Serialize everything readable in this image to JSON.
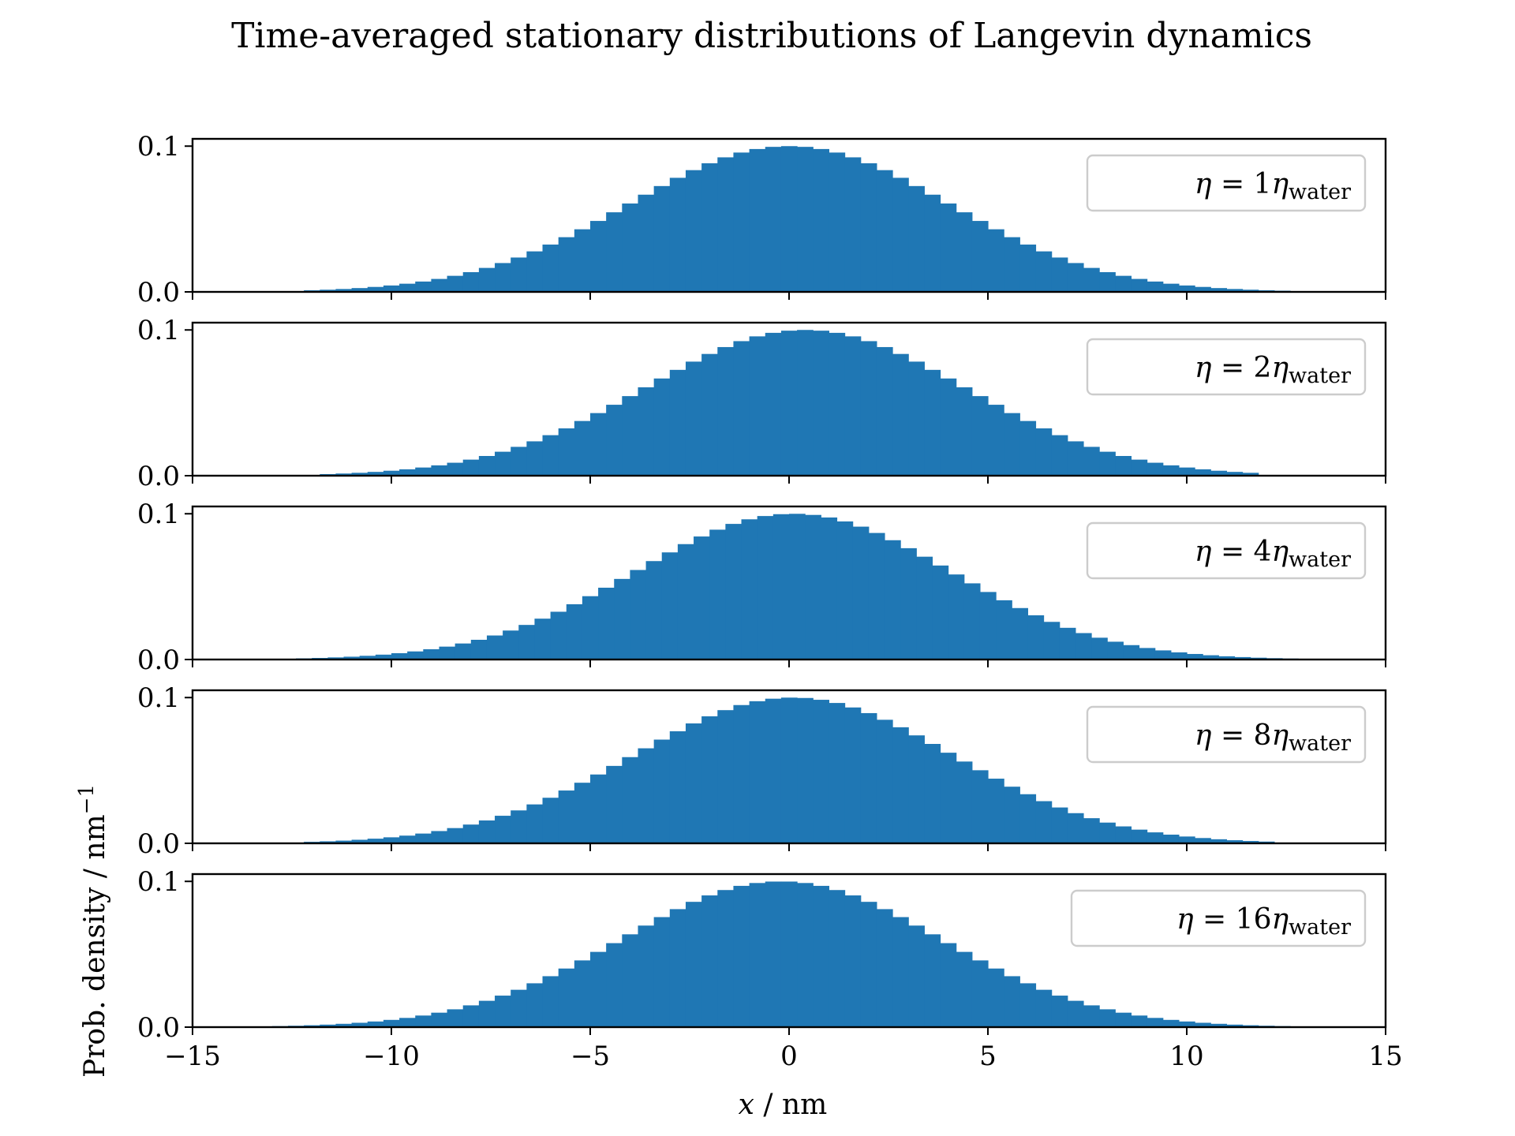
{
  "figure": {
    "title": "Time-averaged stationary distributions of Langevin dynamics",
    "xlabel": "x / nm",
    "ylabel": "Prob. density / nm⁻¹"
  },
  "colors": {
    "bar": "#1f77b4",
    "axis": "#000000",
    "legend_border": "#cccccc"
  },
  "chart_data": [
    {
      "type": "bar",
      "legend": "η = 1ηwater",
      "eta_multiplier": "1",
      "xlim": [
        -15,
        15
      ],
      "ylim": [
        0,
        0.105
      ],
      "x_ticks": [
        -15,
        -10,
        -5,
        0,
        5,
        10,
        15
      ],
      "y_ticks": [
        0.0,
        0.1
      ],
      "x_tick_labels_visible": false,
      "bin_width_nm": 0.4,
      "range": [
        -12.2,
        12.4
      ],
      "mean": 0.0,
      "sigma": 4.0,
      "peak": 0.1
    },
    {
      "type": "bar",
      "legend": "η = 2ηwater",
      "eta_multiplier": "2",
      "xlim": [
        -15,
        15
      ],
      "ylim": [
        0,
        0.105
      ],
      "x_ticks": [
        -15,
        -10,
        -5,
        0,
        5,
        10,
        15
      ],
      "y_ticks": [
        0.0,
        0.1
      ],
      "x_tick_labels_visible": false,
      "bin_width_nm": 0.4,
      "range": [
        -11.8,
        11.8
      ],
      "mean": 0.4,
      "sigma": 4.0,
      "peak": 0.1
    },
    {
      "type": "bar",
      "legend": "η = 4ηwater",
      "eta_multiplier": "4",
      "xlim": [
        -15,
        15
      ],
      "ylim": [
        0,
        0.105
      ],
      "x_ticks": [
        -15,
        -10,
        -5,
        0,
        5,
        10,
        15
      ],
      "y_ticks": [
        0.0,
        0.1
      ],
      "x_tick_labels_visible": false,
      "bin_width_nm": 0.4,
      "range": [
        -12.4,
        12.6
      ],
      "mean": 0.1,
      "sigma": 3.95,
      "peak": 0.1
    },
    {
      "type": "bar",
      "legend": "η = 8ηwater",
      "eta_multiplier": "8",
      "xlim": [
        -15,
        15
      ],
      "ylim": [
        0,
        0.105
      ],
      "x_ticks": [
        -15,
        -10,
        -5,
        0,
        5,
        10,
        15
      ],
      "y_ticks": [
        0.0,
        0.1
      ],
      "x_tick_labels_visible": false,
      "bin_width_nm": 0.4,
      "range": [
        -12.2,
        12.2
      ],
      "mean": 0.1,
      "sigma": 4.0,
      "peak": 0.1
    },
    {
      "type": "bar",
      "legend": "η = 16ηwater",
      "eta_multiplier": "16",
      "xlim": [
        -15,
        15
      ],
      "ylim": [
        0,
        0.105
      ],
      "x_ticks": [
        -15,
        -10,
        -5,
        0,
        5,
        10,
        15
      ],
      "y_ticks": [
        0.0,
        0.1
      ],
      "x_tick_labels_visible": true,
      "x_tick_labels": [
        "−15",
        "−10",
        "−5",
        "0",
        "5",
        "10",
        "15"
      ],
      "bin_width_nm": 0.4,
      "range": [
        -13.0,
        12.6
      ],
      "mean": -0.2,
      "sigma": 4.0,
      "peak": 0.1
    }
  ]
}
